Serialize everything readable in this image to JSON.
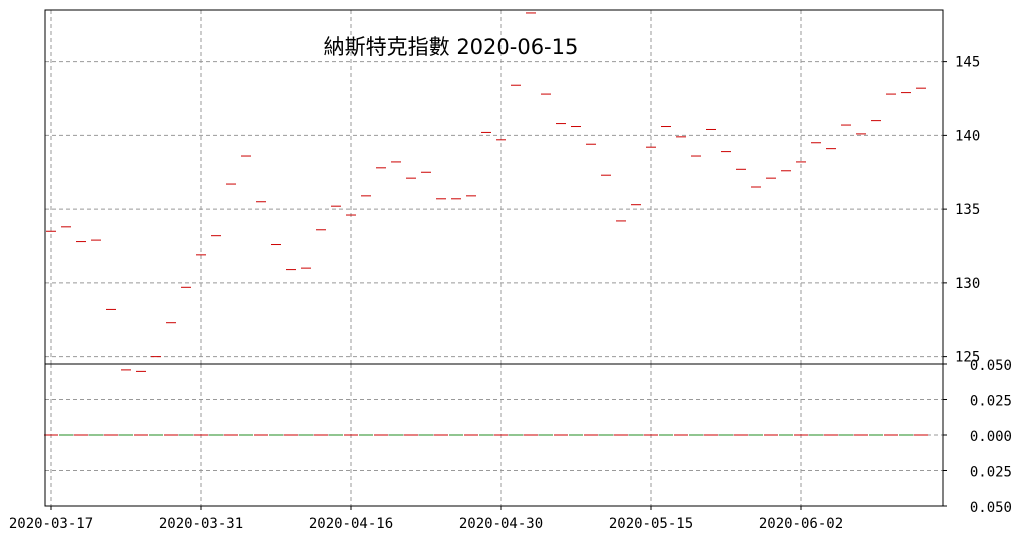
{
  "chart_data": {
    "type": "candlestick",
    "title": "納斯特克指數 2020-06-15",
    "x_tick_labels": [
      "2020-03-17",
      "2020-03-31",
      "2020-04-16",
      "2020-04-30",
      "2020-05-15",
      "2020-06-02"
    ],
    "x_tick_indices": [
      0,
      10,
      20,
      30,
      40,
      50
    ],
    "price_panel": {
      "y_ticks": [
        125,
        130,
        135,
        140,
        145
      ],
      "ylim": [
        124.5,
        148.5
      ],
      "grid": true,
      "candle_color": "#cc0000",
      "close_values": [
        133.5,
        133.8,
        132.8,
        132.9,
        128.2,
        124.1,
        124.0,
        125.0,
        127.3,
        129.7,
        131.9,
        133.2,
        136.7,
        138.6,
        135.5,
        132.6,
        130.9,
        131.0,
        133.6,
        135.2,
        134.6,
        135.9,
        137.8,
        138.2,
        137.1,
        137.5,
        135.7,
        135.7,
        135.9,
        140.2,
        139.7,
        143.4,
        148.3,
        142.8,
        140.8,
        140.6,
        139.4,
        137.3,
        134.2,
        135.3,
        139.2,
        140.6,
        139.9,
        138.6,
        140.4,
        138.9,
        137.7,
        136.5,
        137.1,
        137.6,
        138.2,
        139.5,
        139.1,
        140.7,
        140.1,
        141.0,
        142.8,
        142.9,
        143.2
      ]
    },
    "volume_panel": {
      "y_tick_labels": [
        "0.050",
        "0.025",
        "0.000",
        "0.025",
        "0.050"
      ],
      "y_tick_values": [
        0.05,
        0.025,
        0.0,
        -0.025,
        -0.05
      ],
      "ylim": [
        -0.05,
        0.05
      ],
      "grid": true,
      "bar_colors": [
        "#cc0000",
        "#228b22"
      ],
      "values": [
        0,
        0,
        0,
        0,
        0,
        0,
        0,
        0,
        0,
        0,
        0,
        0,
        0,
        0,
        0,
        0,
        0,
        0,
        0,
        0,
        0,
        0,
        0,
        0,
        0,
        0,
        0,
        0,
        0,
        0,
        0,
        0,
        0,
        0,
        0,
        0,
        0,
        0,
        0,
        0,
        0,
        0,
        0,
        0,
        0,
        0,
        0,
        0,
        0,
        0,
        0,
        0,
        0,
        0,
        0,
        0,
        0,
        0,
        0
      ]
    },
    "grid_color": "#999999",
    "axis_color": "#000000"
  }
}
